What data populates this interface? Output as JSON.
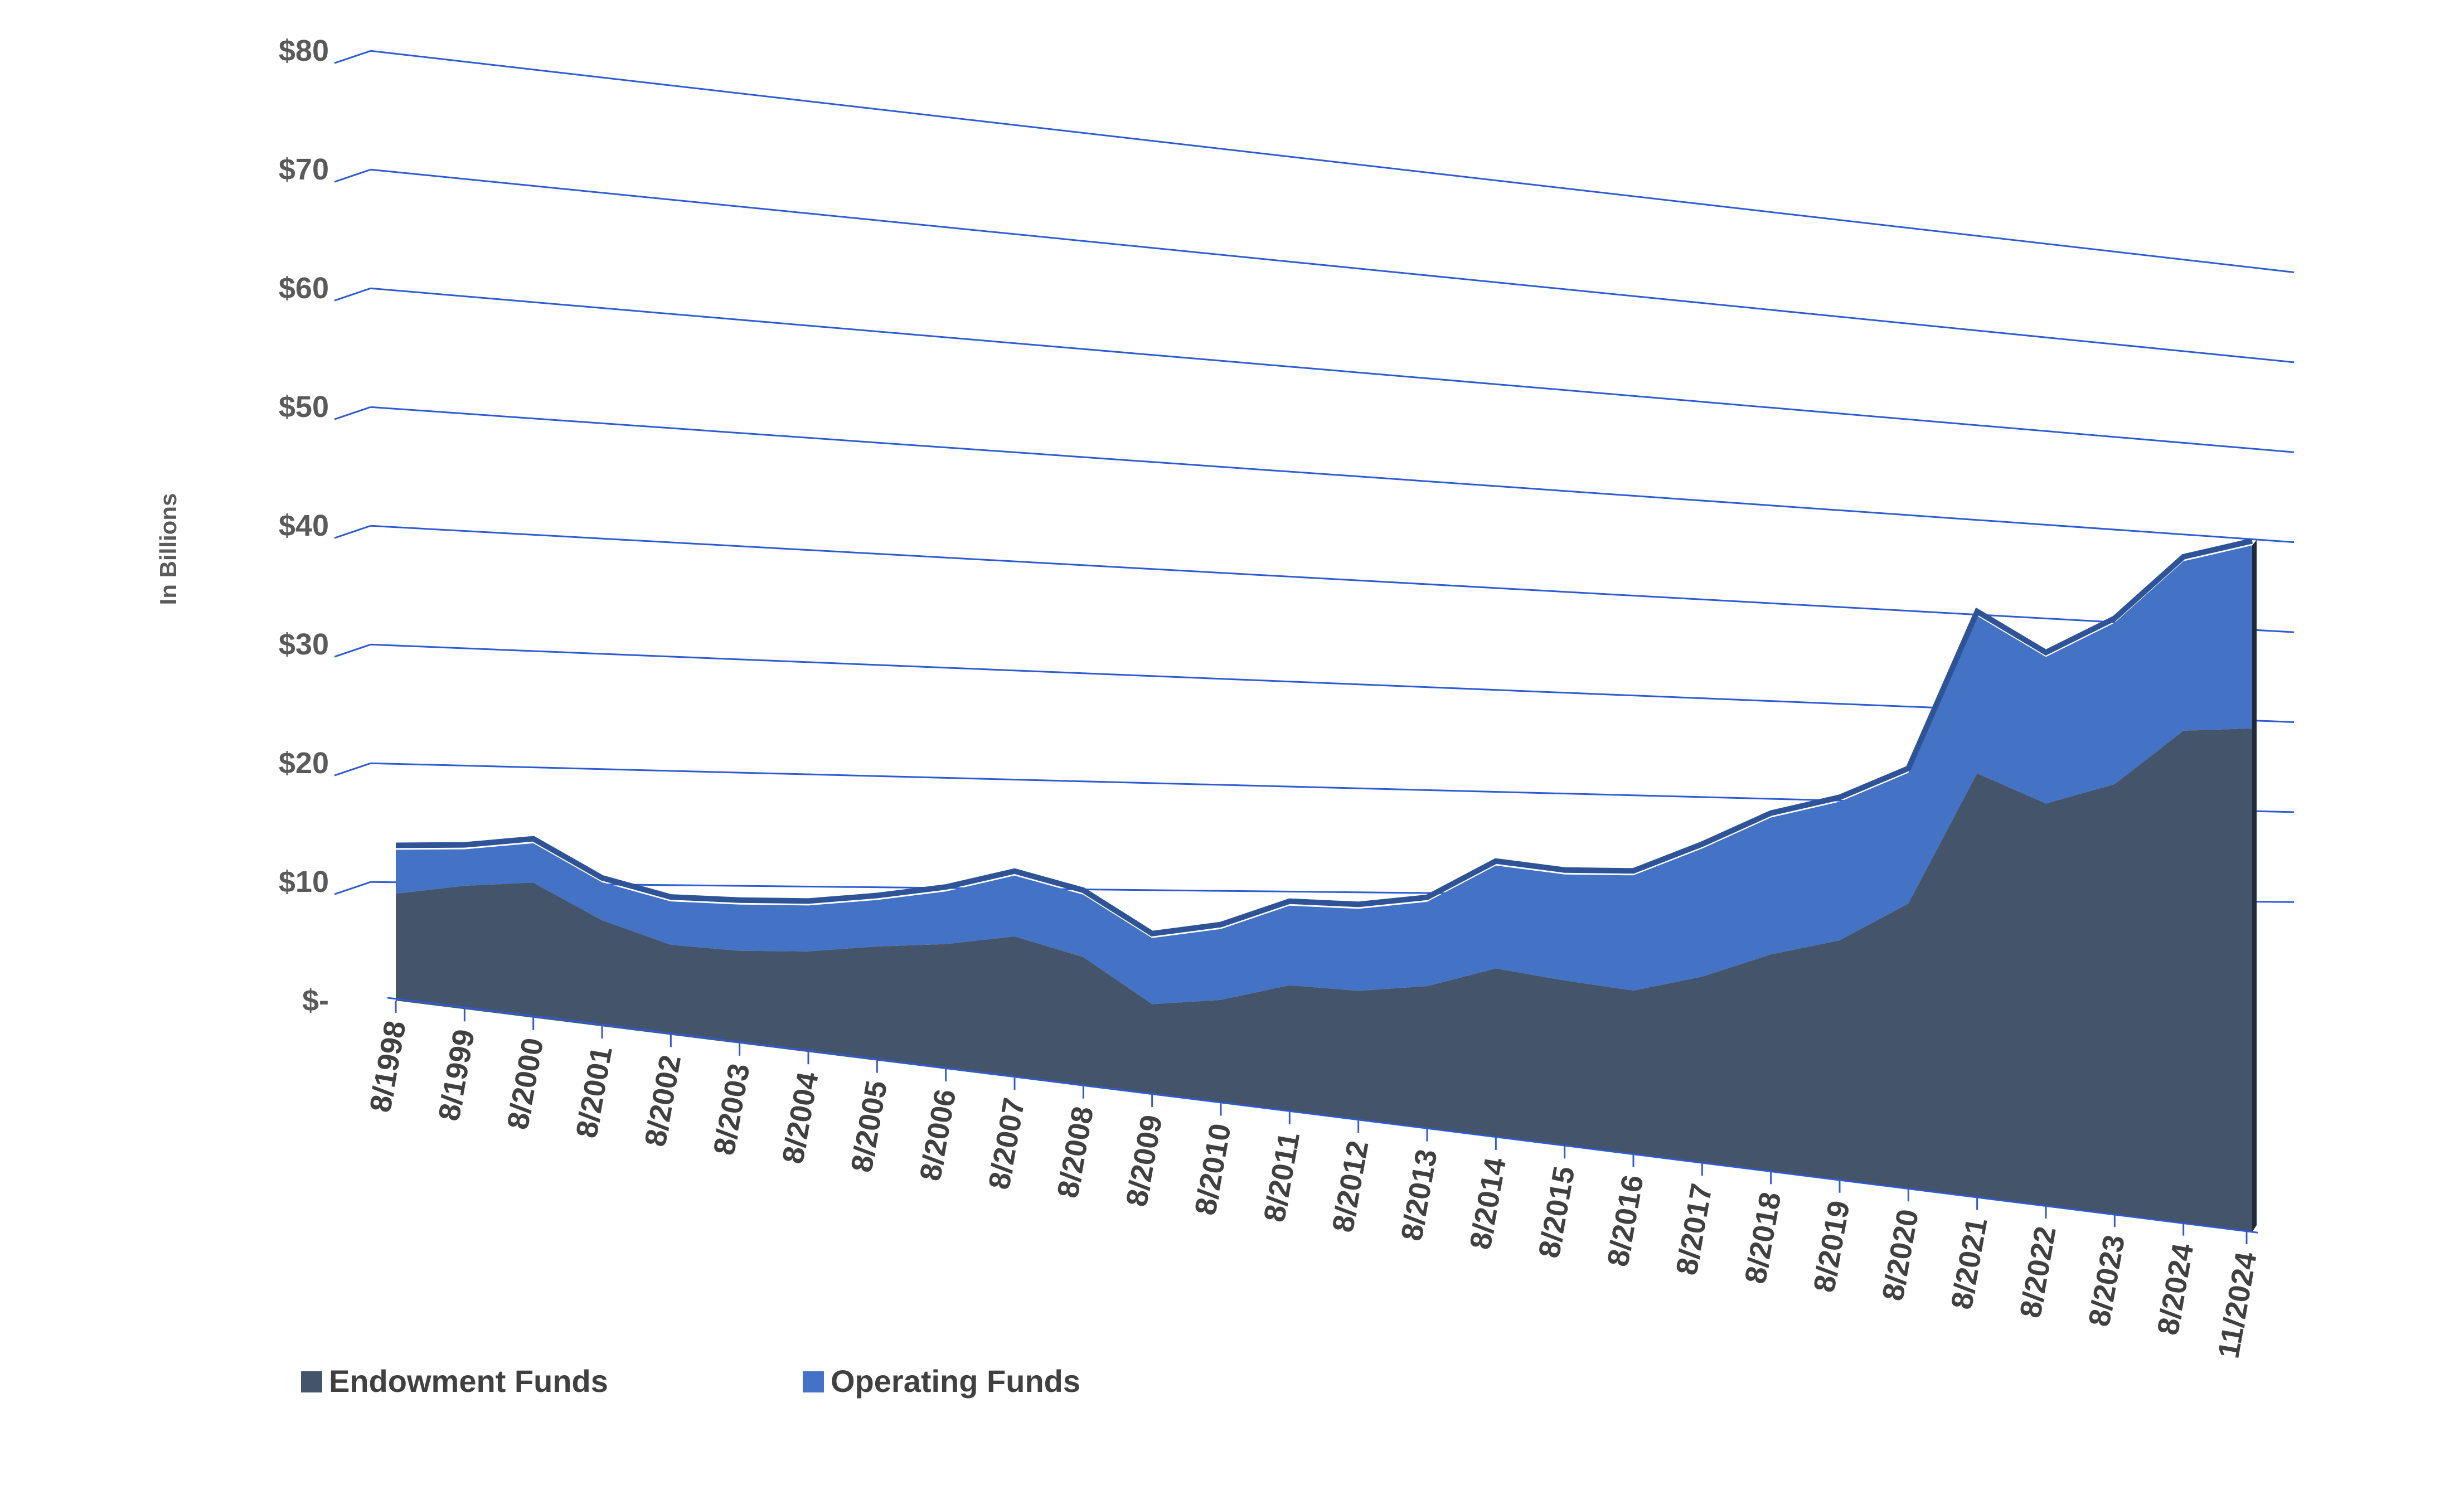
{
  "chart_data": {
    "type": "area",
    "stacked": true,
    "perspective": "3d",
    "ylabel": "In Billions",
    "ylim": [
      0,
      80
    ],
    "y_ticks": [
      {
        "value": 0,
        "label": "$-"
      },
      {
        "value": 10,
        "label": "$10"
      },
      {
        "value": 20,
        "label": "$20"
      },
      {
        "value": 30,
        "label": "$30"
      },
      {
        "value": 40,
        "label": "$40"
      },
      {
        "value": 50,
        "label": "$50"
      },
      {
        "value": 60,
        "label": "$60"
      },
      {
        "value": 70,
        "label": "$70"
      },
      {
        "value": 80,
        "label": "$80"
      }
    ],
    "categories": [
      "8/1998",
      "8/1999",
      "8/2000",
      "8/2001",
      "8/2002",
      "8/2003",
      "8/2004",
      "8/2005",
      "8/2006",
      "8/2007",
      "8/2008",
      "8/2009",
      "8/2010",
      "8/2011",
      "8/2012",
      "8/2013",
      "8/2014",
      "8/2015",
      "8/2016",
      "8/2017",
      "8/2018",
      "8/2019",
      "8/2020",
      "8/2021",
      "8/2022",
      "8/2023",
      "8/2024",
      "11/2024"
    ],
    "series": [
      {
        "name": "Endowment Funds",
        "color": "#44546A",
        "values": [
          9,
          10.5,
          11.6,
          9.2,
          7.9,
          8.2,
          9,
          10.3,
          11.4,
          13,
          12,
          8.5,
          9.8,
          12.1,
          12.5,
          13.9,
          16.6,
          16.4,
          16.4,
          18.8,
          22.1,
          24.6,
          29.5,
          44.2,
          42.3,
          45.6,
          52.6,
          54.2
        ]
      },
      {
        "name": "Operating Funds",
        "color": "#4472C4",
        "values": [
          3.7,
          3.1,
          3.4,
          3.3,
          3.8,
          4.1,
          4.1,
          4.2,
          4.8,
          5.6,
          5.8,
          6.2,
          6.7,
          7.6,
          7.9,
          8.2,
          10.1,
          10.5,
          11.5,
          12.9,
          13.9,
          14.2,
          13.5,
          16.4,
          15.4,
          17.1,
          18.1,
          19.7
        ]
      }
    ],
    "gridlines": true,
    "legend_position": "bottom-left"
  }
}
